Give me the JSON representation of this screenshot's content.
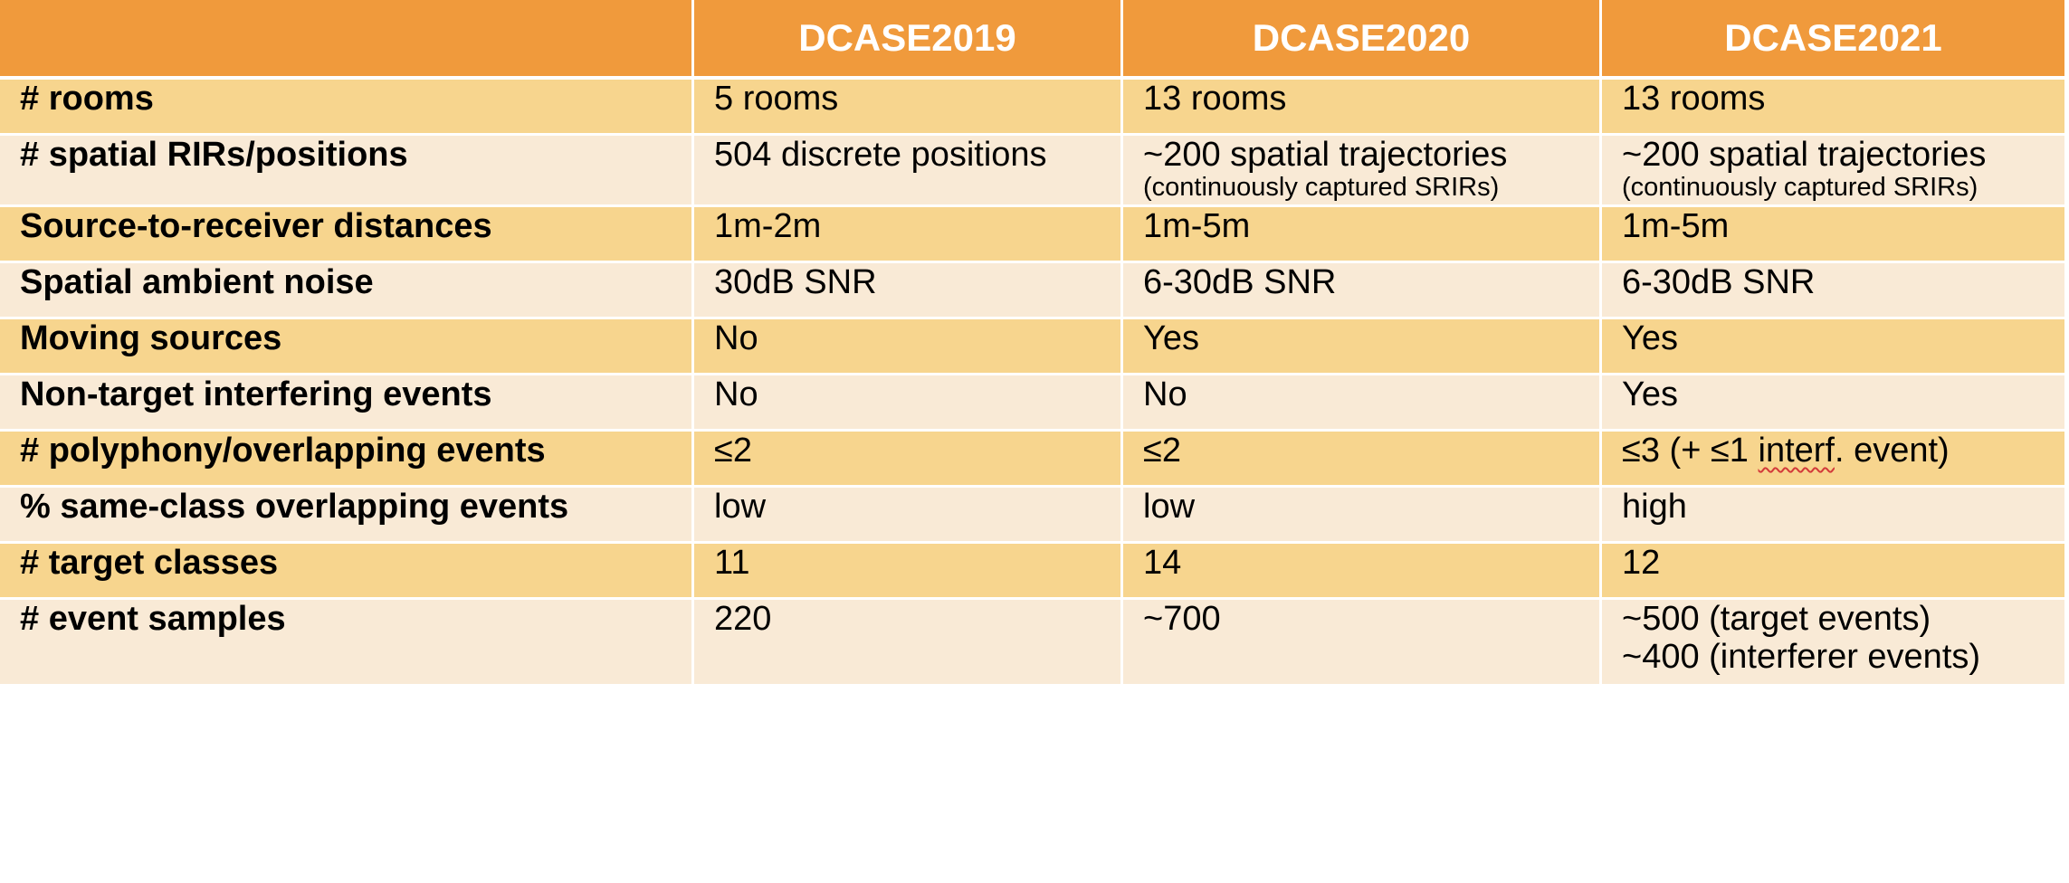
{
  "header": {
    "blank": "",
    "col1": "DCASE2019",
    "col2": "DCASE2020",
    "col3": "DCASE2021"
  },
  "rows": {
    "rooms": {
      "label": "# rooms",
      "c1": "5 rooms",
      "c2": "13 rooms",
      "c3": "13 rooms"
    },
    "rirs": {
      "label": "# spatial RIRs/positions",
      "c1": "504 discrete positions",
      "c2": "~200 spatial trajectories",
      "c2_sub": "(continuously captured SRIRs)",
      "c3": "~200 spatial trajectories",
      "c3_sub": "(continuously captured SRIRs)"
    },
    "distances": {
      "label": "Source-to-receiver distances",
      "c1": "1m-2m",
      "c2": "1m-5m",
      "c3": "1m-5m"
    },
    "noise": {
      "label": "Spatial ambient noise",
      "c1": "30dB SNR",
      "c2": "6-30dB SNR",
      "c3": "6-30dB SNR"
    },
    "moving": {
      "label": "Moving sources",
      "c1": "No",
      "c2": "Yes",
      "c3": "Yes"
    },
    "interfering": {
      "label": "Non-target interfering events",
      "c1": "No",
      "c2": "No",
      "c3": "Yes"
    },
    "polyphony": {
      "label": "# polyphony/overlapping events",
      "c1": "≤2",
      "c2": "≤2",
      "c3_pre": "≤3 (+ ≤1 ",
      "c3_mark": "interf",
      "c3_post": ". event)"
    },
    "sameclass": {
      "label": "% same-class overlapping events",
      "c1": "low",
      "c2": "low",
      "c3": "high"
    },
    "classes": {
      "label": "# target classes",
      "c1": "11",
      "c2": "14",
      "c3": "12"
    },
    "samples": {
      "label": "# event samples",
      "c1": "220",
      "c2": "~700",
      "c3_line1": "~500 (target events)",
      "c3_line2": "~400 (interferer events)"
    }
  },
  "colors": {
    "header_bg": "#f09a3c",
    "row_dark": "#f7d58e",
    "row_light": "#f9ead6"
  }
}
